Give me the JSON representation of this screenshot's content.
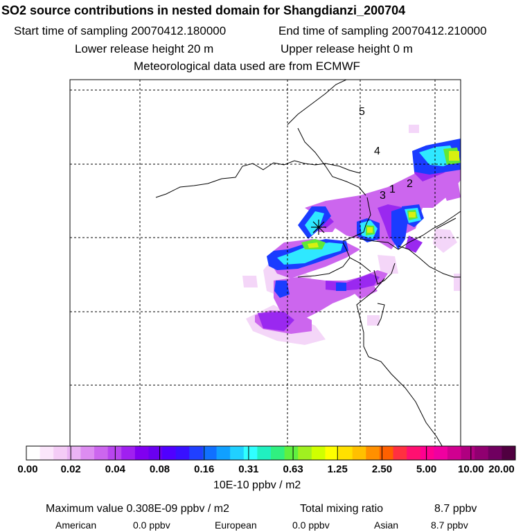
{
  "header": {
    "title": "SO2 source contributions in nested domain for Shangdianzi_200704",
    "start_label": "Start time of sampling 20070412.180000",
    "end_label": "End time of sampling 20070412.210000",
    "lower_height": "Lower release height   20 m",
    "upper_height": "Upper release height    0 m",
    "met_data": "Meteorological data used are from ECMWF"
  },
  "map": {
    "trajectory_labels": [
      "5",
      "4",
      "2",
      "1",
      "3"
    ],
    "station_marker": "station-star-icon"
  },
  "colorbar": {
    "ticks": [
      "0.00",
      "0.02",
      "0.04",
      "0.08",
      "0.16",
      "0.31",
      "0.63",
      "1.25",
      "2.50",
      "5.00",
      "10.00",
      "20.00"
    ],
    "colors": [
      "#ffffff",
      "#fbe6fb",
      "#f4ccf6",
      "#eab3f4",
      "#dd8cf1",
      "#cc66ee",
      "#b845ee",
      "#a020f0",
      "#8000f0",
      "#6a00f0",
      "#5000ff",
      "#3810ff",
      "#2040ff",
      "#1070ff",
      "#10a0ff",
      "#20d0ff",
      "#30ffff",
      "#20f0c0",
      "#30f080",
      "#60f040",
      "#a0f020",
      "#d0ff00",
      "#ffff00",
      "#ffe000",
      "#ffc000",
      "#ff9000",
      "#ff6000",
      "#ff3040",
      "#ff1070",
      "#ff0090",
      "#f000a0",
      "#d00090",
      "#b00080",
      "#900070",
      "#700060",
      "#500040"
    ],
    "unit": "10E-10 ppbv / m2"
  },
  "footer": {
    "max_value": "Maximum value  0.308E-09 ppbv / m2",
    "total_label": "Total mixing ratio",
    "total_value": "8.7 ppbv",
    "contributions": [
      {
        "name": "American",
        "value": "0.0 ppbv"
      },
      {
        "name": "European",
        "value": "0.0 ppbv"
      },
      {
        "name": "Asian",
        "value": "8.7 ppbv"
      }
    ]
  }
}
